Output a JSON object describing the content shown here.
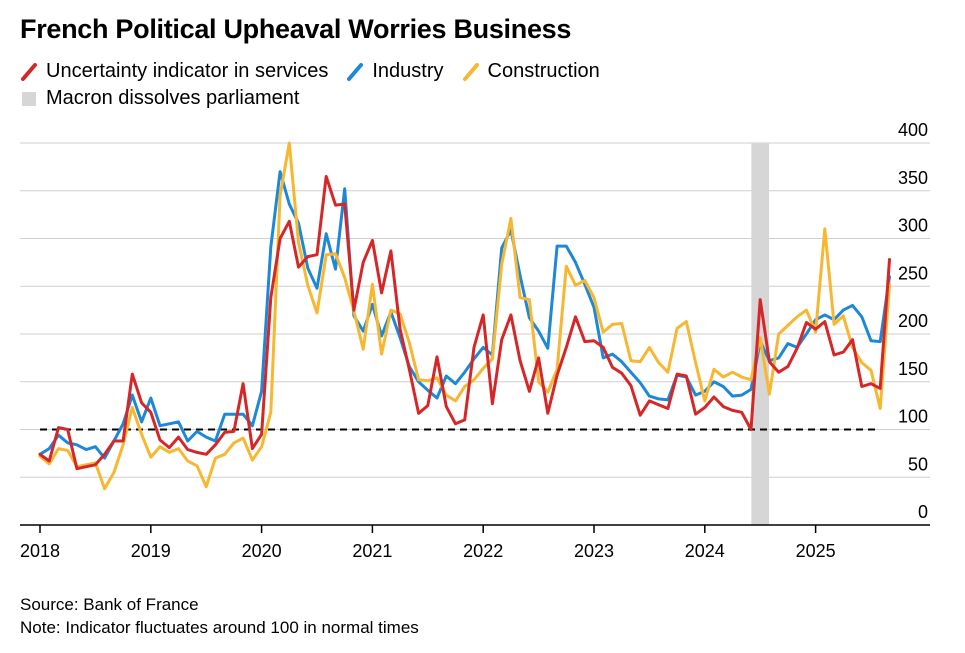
{
  "chart_data": {
    "type": "line",
    "title": "French Political Upheaval Worries Business",
    "legend": [
      {
        "label": "Uncertainty indicator in services",
        "color": "#d62728",
        "kind": "line"
      },
      {
        "label": "Industry",
        "color": "#1e88d8",
        "kind": "line"
      },
      {
        "label": "Construction",
        "color": "#f7b731",
        "kind": "line"
      },
      {
        "label": "Macron dissolves parliament",
        "color": "#d6d6d6",
        "kind": "box"
      }
    ],
    "x_ticks": [
      "2018",
      "2019",
      "2020",
      "2021",
      "2022",
      "2023",
      "2024",
      "2025"
    ],
    "xlim": [
      2018,
      2025.9
    ],
    "y_ticks": [
      "0",
      "50",
      "100",
      "150",
      "200",
      "250",
      "300",
      "350",
      "400"
    ],
    "ylim": [
      0,
      400
    ],
    "grid": "horizontal",
    "reference_line": 100,
    "shaded_period": [
      2024.42,
      2024.58
    ],
    "x_start": 2018.0,
    "x_step_months": 1,
    "series": [
      {
        "name": "Uncertainty indicator in services",
        "color": "#d62728",
        "values": [
          74,
          67,
          102,
          100,
          59,
          61,
          63,
          74,
          88,
          88,
          158,
          128,
          118,
          89,
          81,
          92,
          79,
          76,
          74,
          84,
          97,
          98,
          148,
          80,
          95,
          238,
          300,
          318,
          270,
          281,
          283,
          365,
          335,
          336,
          225,
          275,
          298,
          243,
          287,
          205,
          163,
          117,
          125,
          176,
          124,
          106,
          110,
          186,
          220,
          127,
          194,
          220,
          172,
          140,
          175,
          117,
          157,
          186,
          218,
          192,
          193,
          186,
          165,
          159,
          146,
          115,
          130,
          126,
          122,
          158,
          156,
          116,
          123,
          134,
          124,
          120,
          118,
          100,
          236,
          171,
          160,
          166,
          185,
          212,
          205,
          213,
          178,
          181,
          194,
          145,
          148,
          143,
          278
        ]
      },
      {
        "name": "Industry",
        "color": "#1e88d8",
        "values": [
          74,
          80,
          94,
          86,
          84,
          79,
          82,
          70,
          88,
          106,
          136,
          108,
          133,
          104,
          106,
          108,
          88,
          98,
          92,
          88,
          116,
          116,
          116,
          104,
          140,
          291,
          370,
          336,
          316,
          269,
          248,
          305,
          268,
          352,
          219,
          203,
          231,
          198,
          223,
          196,
          166,
          150,
          141,
          133,
          156,
          148,
          160,
          174,
          186,
          178,
          290,
          309,
          261,
          217,
          203,
          185,
          292,
          292,
          275,
          252,
          228,
          175,
          179,
          171,
          160,
          149,
          135,
          132,
          131,
          157,
          155,
          136,
          140,
          150,
          145,
          135,
          136,
          142,
          192,
          172,
          175,
          190,
          186,
          200,
          215,
          220,
          215,
          225,
          230,
          218,
          193,
          192,
          260
        ]
      },
      {
        "name": "Construction",
        "color": "#f7b731",
        "values": [
          72,
          64,
          80,
          78,
          61,
          63,
          65,
          38,
          55,
          84,
          123,
          95,
          71,
          82,
          76,
          80,
          67,
          62,
          40,
          70,
          74,
          86,
          91,
          68,
          82,
          118,
          345,
          400,
          296,
          251,
          222,
          283,
          284,
          259,
          224,
          184,
          252,
          179,
          225,
          221,
          191,
          152,
          151,
          154,
          136,
          130,
          145,
          152,
          164,
          174,
          273,
          321,
          238,
          236,
          150,
          139,
          163,
          271,
          251,
          256,
          238,
          202,
          210,
          211,
          172,
          171,
          186,
          170,
          160,
          206,
          213,
          170,
          130,
          163,
          155,
          160,
          155,
          152,
          196,
          137,
          200,
          209,
          218,
          225,
          202,
          310,
          210,
          219,
          186,
          170,
          162,
          122,
          252
        ]
      }
    ],
    "source": "Source: Bank of France",
    "note": "Note: Indicator fluctuates around 100 in normal times"
  }
}
